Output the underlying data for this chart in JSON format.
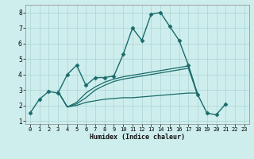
{
  "xlabel": "Humidex (Indice chaleur)",
  "xlim": [
    -0.5,
    23.5
  ],
  "ylim": [
    0.8,
    8.5
  ],
  "xticks": [
    0,
    1,
    2,
    3,
    4,
    5,
    6,
    7,
    8,
    9,
    10,
    11,
    12,
    13,
    14,
    15,
    16,
    17,
    18,
    19,
    20,
    21,
    22,
    23
  ],
  "yticks": [
    1,
    2,
    3,
    4,
    5,
    6,
    7,
    8
  ],
  "bg_color": "#ceeeed",
  "grid_color": "#aad4d2",
  "line_color": "#1a6b6b",
  "series": [
    {
      "x": [
        0,
        1,
        2,
        3,
        4,
        5,
        6,
        7,
        8,
        9,
        10,
        11,
        12,
        13,
        14,
        15,
        16,
        17,
        18,
        19,
        20,
        21
      ],
      "y": [
        1.5,
        2.4,
        2.9,
        2.8,
        4.0,
        4.6,
        3.3,
        3.8,
        3.8,
        3.9,
        5.3,
        7.0,
        6.2,
        7.9,
        8.0,
        7.1,
        6.2,
        4.6,
        2.7,
        1.5,
        1.4,
        2.1
      ],
      "marker": "D",
      "markersize": 2.5,
      "linewidth": 1.0
    },
    {
      "x": [
        3,
        4,
        5,
        6,
        7,
        8,
        9,
        10,
        11,
        12,
        13,
        14,
        15,
        16,
        17,
        18
      ],
      "y": [
        2.9,
        1.9,
        2.2,
        2.8,
        3.2,
        3.5,
        3.7,
        3.85,
        3.95,
        4.05,
        4.15,
        4.25,
        4.35,
        4.45,
        4.55,
        2.6
      ],
      "marker": null,
      "markersize": 0,
      "linewidth": 0.9
    },
    {
      "x": [
        3,
        4,
        5,
        6,
        7,
        8,
        9,
        10,
        11,
        12,
        13,
        14,
        15,
        16,
        17,
        18
      ],
      "y": [
        2.9,
        1.9,
        2.0,
        2.2,
        2.3,
        2.4,
        2.45,
        2.5,
        2.5,
        2.55,
        2.6,
        2.65,
        2.7,
        2.75,
        2.8,
        2.8
      ],
      "marker": null,
      "markersize": 0,
      "linewidth": 0.9
    },
    {
      "x": [
        3,
        4,
        5,
        6,
        7,
        8,
        9,
        10,
        11,
        12,
        13,
        14,
        15,
        16,
        17,
        18
      ],
      "y": [
        2.9,
        1.9,
        2.1,
        2.5,
        3.0,
        3.3,
        3.55,
        3.7,
        3.8,
        3.9,
        4.0,
        4.1,
        4.2,
        4.3,
        4.4,
        2.7
      ],
      "marker": null,
      "markersize": 0,
      "linewidth": 0.9
    }
  ]
}
